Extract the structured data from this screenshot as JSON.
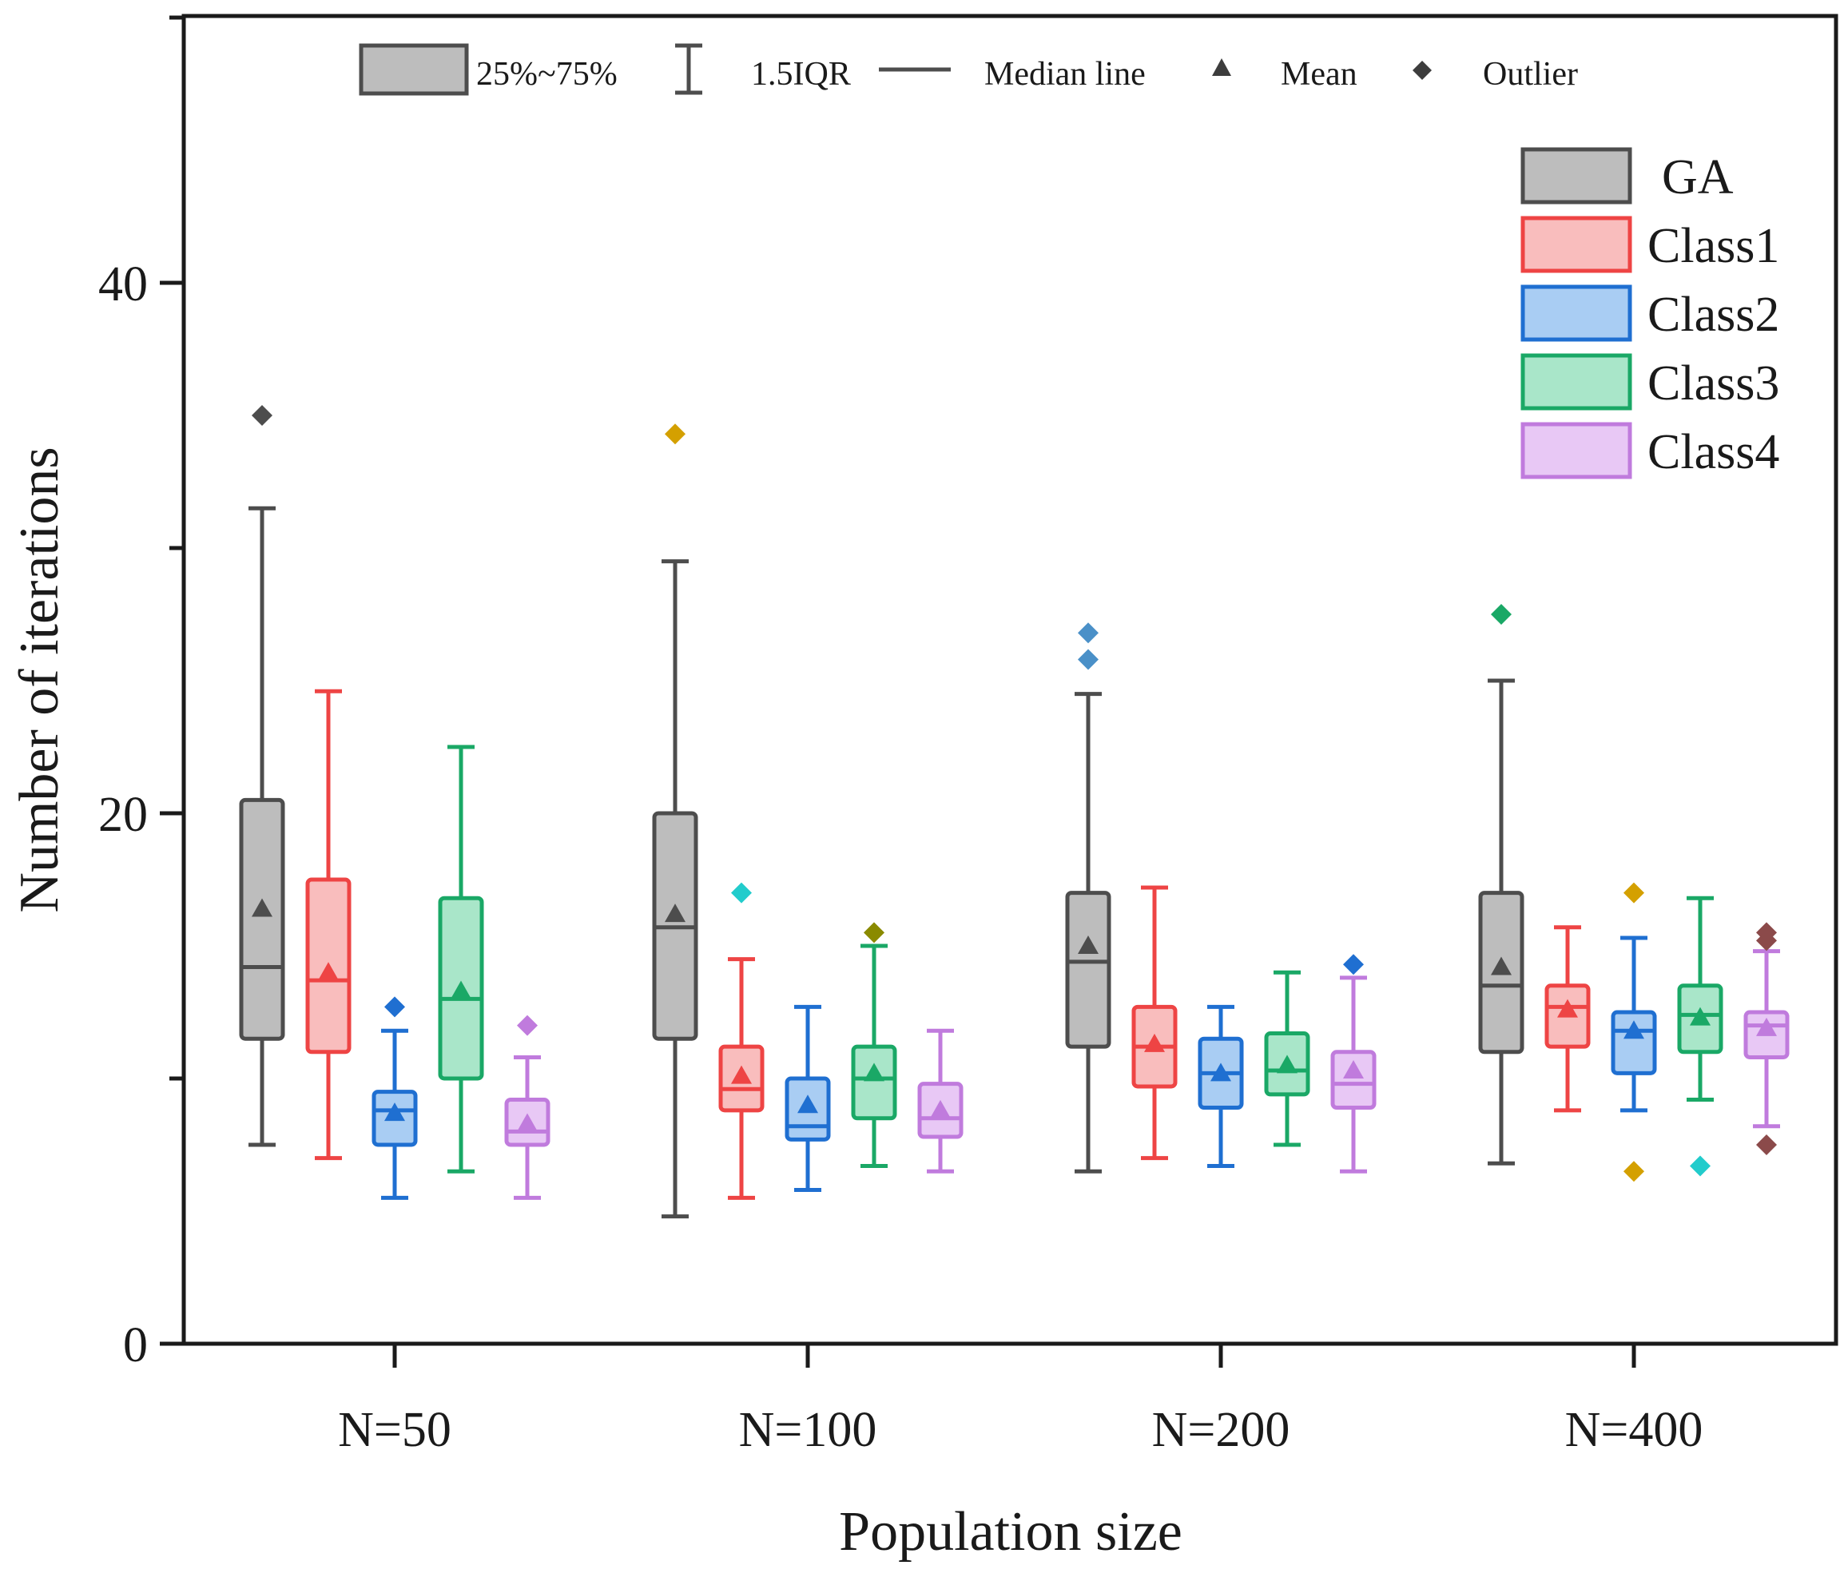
{
  "chart_data": {
    "type": "box",
    "title": "",
    "xlabel": "Population size",
    "ylabel": "Number of iterations",
    "ylim": [
      0,
      50
    ],
    "yticks": [
      0,
      20,
      40
    ],
    "categories": [
      "N=50",
      "N=100",
      "N=200",
      "N=400"
    ],
    "legend_stats": {
      "box": "25%~75%",
      "whisker": "1.5IQR",
      "median": "Median line",
      "mean": "Mean",
      "outlier": "Outlier"
    },
    "series": [
      {
        "name": "GA",
        "stroke": "#4d4d4d",
        "fill": "#bdbdbd",
        "data": [
          {
            "q1": 11.5,
            "median": 14.2,
            "q3": 20.5,
            "whisker_low": 7.5,
            "whisker_high": 31.5,
            "mean": 16.4,
            "outliers": [
              {
                "value": 35.0,
                "color": "#4d4d4d"
              }
            ]
          },
          {
            "q1": 11.5,
            "median": 15.7,
            "q3": 20.0,
            "whisker_low": 4.8,
            "whisker_high": 29.5,
            "mean": 16.2,
            "outliers": [
              {
                "value": 34.3,
                "color": "#d4a000"
              }
            ]
          },
          {
            "q1": 11.2,
            "median": 14.4,
            "q3": 17.0,
            "whisker_low": 6.5,
            "whisker_high": 24.5,
            "mean": 15.0,
            "outliers": [
              {
                "value": 26.8,
                "color": "#4a90c8"
              },
              {
                "value": 25.8,
                "color": "#4a90c8"
              }
            ]
          },
          {
            "q1": 11.0,
            "median": 13.5,
            "q3": 17.0,
            "whisker_low": 6.8,
            "whisker_high": 25.0,
            "mean": 14.2,
            "outliers": [
              {
                "value": 27.5,
                "color": "#1aa866"
              }
            ]
          }
        ]
      },
      {
        "name": "Class1",
        "stroke": "#ee4444",
        "fill": "#f9bdbd",
        "data": [
          {
            "q1": 11.0,
            "median": 13.7,
            "q3": 17.5,
            "whisker_low": 7.0,
            "whisker_high": 24.6,
            "mean": 14.0,
            "outliers": []
          },
          {
            "q1": 8.8,
            "median": 9.6,
            "q3": 11.2,
            "whisker_low": 5.5,
            "whisker_high": 14.5,
            "mean": 10.1,
            "outliers": [
              {
                "value": 17.0,
                "color": "#22cccc"
              }
            ]
          },
          {
            "q1": 9.7,
            "median": 11.2,
            "q3": 12.7,
            "whisker_low": 7.0,
            "whisker_high": 17.2,
            "mean": 11.3,
            "outliers": []
          },
          {
            "q1": 11.2,
            "median": 12.7,
            "q3": 13.5,
            "whisker_low": 8.8,
            "whisker_high": 15.7,
            "mean": 12.6,
            "outliers": []
          }
        ]
      },
      {
        "name": "Class2",
        "stroke": "#1f6fd1",
        "fill": "#a9cdf3",
        "data": [
          {
            "q1": 7.5,
            "median": 8.8,
            "q3": 9.5,
            "whisker_low": 5.5,
            "whisker_high": 11.8,
            "mean": 8.7,
            "outliers": [
              {
                "value": 12.7,
                "color": "#1f6fd1"
              }
            ]
          },
          {
            "q1": 7.7,
            "median": 8.2,
            "q3": 10.0,
            "whisker_low": 5.8,
            "whisker_high": 12.7,
            "mean": 9.0,
            "outliers": []
          },
          {
            "q1": 8.9,
            "median": 10.2,
            "q3": 11.5,
            "whisker_low": 6.7,
            "whisker_high": 12.7,
            "mean": 10.2,
            "outliers": []
          },
          {
            "q1": 10.2,
            "median": 11.8,
            "q3": 12.5,
            "whisker_low": 8.8,
            "whisker_high": 15.3,
            "mean": 11.8,
            "outliers": [
              {
                "value": 17.0,
                "color": "#d4a000"
              },
              {
                "value": 6.5,
                "color": "#d4a000"
              }
            ]
          }
        ]
      },
      {
        "name": "Class3",
        "stroke": "#1aa866",
        "fill": "#a9e6c9",
        "data": [
          {
            "q1": 10.0,
            "median": 13.0,
            "q3": 16.8,
            "whisker_low": 6.5,
            "whisker_high": 22.5,
            "mean": 13.3,
            "outliers": []
          },
          {
            "q1": 8.5,
            "median": 10.0,
            "q3": 11.2,
            "whisker_low": 6.7,
            "whisker_high": 15.0,
            "mean": 10.2,
            "outliers": [
              {
                "value": 15.5,
                "color": "#8a8a00"
              }
            ]
          },
          {
            "q1": 9.4,
            "median": 10.3,
            "q3": 11.7,
            "whisker_low": 7.5,
            "whisker_high": 14.0,
            "mean": 10.5,
            "outliers": []
          },
          {
            "q1": 11.0,
            "median": 12.4,
            "q3": 13.5,
            "whisker_low": 9.2,
            "whisker_high": 16.8,
            "mean": 12.3,
            "outliers": [
              {
                "value": 6.7,
                "color": "#22cccc"
              }
            ]
          }
        ]
      },
      {
        "name": "Class4",
        "stroke": "#c07bdd",
        "fill": "#e8c8f5",
        "data": [
          {
            "q1": 7.5,
            "median": 8.0,
            "q3": 9.2,
            "whisker_low": 5.5,
            "whisker_high": 10.8,
            "mean": 8.3,
            "outliers": [
              {
                "value": 12.0,
                "color": "#c07bdd"
              }
            ]
          },
          {
            "q1": 7.8,
            "median": 8.5,
            "q3": 9.8,
            "whisker_low": 6.5,
            "whisker_high": 11.8,
            "mean": 8.8,
            "outliers": []
          },
          {
            "q1": 8.9,
            "median": 9.8,
            "q3": 11.0,
            "whisker_low": 6.5,
            "whisker_high": 13.8,
            "mean": 10.3,
            "outliers": [
              {
                "value": 14.3,
                "color": "#1f6fd1"
              }
            ]
          },
          {
            "q1": 10.8,
            "median": 12.0,
            "q3": 12.5,
            "whisker_low": 8.2,
            "whisker_high": 14.8,
            "mean": 11.9,
            "outliers": [
              {
                "value": 15.5,
                "color": "#8b4a4a"
              },
              {
                "value": 15.2,
                "color": "#8b4a4a"
              },
              {
                "value": 7.5,
                "color": "#8b4a4a"
              }
            ]
          }
        ]
      }
    ]
  }
}
